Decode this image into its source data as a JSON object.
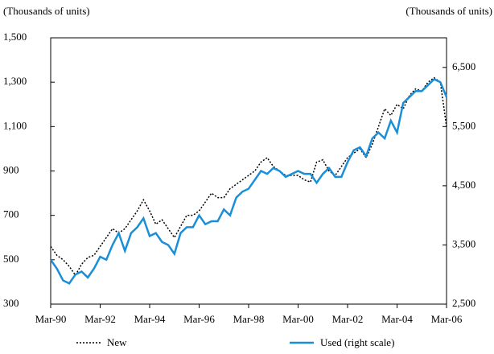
{
  "chart_data": {
    "type": "line",
    "y_label": "(Thousands of units)",
    "y2_label": "(Thousands of units)",
    "categories": [
      "Mar-90",
      null,
      null,
      null,
      null,
      null,
      null,
      null,
      "Mar-92",
      null,
      null,
      null,
      null,
      null,
      null,
      null,
      "Mar-94",
      null,
      null,
      null,
      null,
      null,
      null,
      null,
      "Mar-96",
      null,
      null,
      null,
      null,
      null,
      null,
      null,
      "Mar-98",
      null,
      null,
      null,
      null,
      null,
      null,
      null,
      "Mar-00",
      null,
      null,
      null,
      null,
      null,
      null,
      null,
      "Mar-02",
      null,
      null,
      null,
      null,
      null,
      null,
      null,
      "Mar-04",
      null,
      null,
      null,
      null,
      null,
      null,
      null,
      "Mar-06"
    ],
    "series": [
      {
        "name": "New",
        "color": "#000000",
        "style": "dotted",
        "axis": "y",
        "values": [
          560,
          520,
          500,
          470,
          430,
          480,
          510,
          520,
          560,
          600,
          640,
          620,
          640,
          680,
          720,
          770,
          720,
          660,
          680,
          640,
          600,
          650,
          700,
          700,
          720,
          760,
          800,
          780,
          780,
          820,
          840,
          860,
          880,
          900,
          940,
          960,
          920,
          900,
          880,
          880,
          880,
          860,
          850,
          940,
          950,
          900,
          880,
          920,
          960,
          980,
          1000,
          960,
          1020,
          1100,
          1180,
          1150,
          1200,
          1180,
          1240,
          1270,
          1260,
          1300,
          1320,
          1300,
          1100
        ]
      },
      {
        "name": "Used (right scale)",
        "color": "#1a8fd8",
        "style": "solid",
        "axis": "y2",
        "values": [
          3250,
          3100,
          2900,
          2850,
          3000,
          3050,
          2950,
          3100,
          3300,
          3250,
          3500,
          3700,
          3400,
          3700,
          3800,
          3950,
          3650,
          3700,
          3550,
          3500,
          3350,
          3700,
          3800,
          3800,
          4000,
          3850,
          3900,
          3900,
          4100,
          4000,
          4300,
          4400,
          4450,
          4600,
          4750,
          4700,
          4800,
          4750,
          4650,
          4700,
          4750,
          4700,
          4700,
          4550,
          4700,
          4800,
          4650,
          4650,
          4900,
          5100,
          5150,
          5000,
          5300,
          5400,
          5300,
          5600,
          5400,
          5900,
          6000,
          6100,
          6100,
          6200,
          6300,
          6250,
          6000
        ]
      }
    ],
    "ylim": [
      300,
      1500
    ],
    "yticks": [
      300,
      500,
      700,
      900,
      {
        "value": 1100,
        "label": "1,100"
      },
      {
        "value": 1300,
        "label": "1,300"
      },
      {
        "value": 1500,
        "label": "1,500"
      }
    ],
    "y2lim": [
      2500,
      7000
    ],
    "y2ticks": [
      {
        "value": 2500,
        "label": "2,500"
      },
      {
        "value": 3500,
        "label": "3,500"
      },
      {
        "value": 4500,
        "label": "4,500"
      },
      {
        "value": 5500,
        "label": "5,500"
      },
      {
        "value": 6500,
        "label": "6,500"
      }
    ],
    "legend": "bottom"
  }
}
